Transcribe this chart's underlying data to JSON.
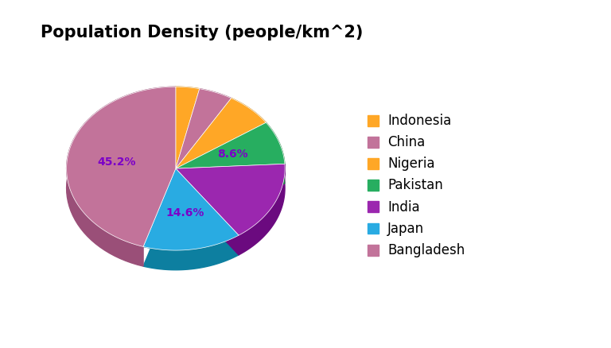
{
  "title": "Population Density (people/km^2)",
  "labels": [
    "Indonesia",
    "China",
    "Nigeria",
    "Pakistan",
    "India",
    "Japan",
    "Bangladesh"
  ],
  "values": [
    3.5,
    5.0,
    7.0,
    8.6,
    16.1,
    14.6,
    45.2
  ],
  "pie_colors": [
    "#FFA726",
    "#C2739A",
    "#FFA726",
    "#27AE60",
    "#9B27AF",
    "#29ABE2",
    "#C2739A"
  ],
  "pie_colors_dark": [
    "#CC8200",
    "#9A4F78",
    "#CC8200",
    "#1A8040",
    "#6B0A7F",
    "#0D7FA0",
    "#9A4F78"
  ],
  "title_fontsize": 15,
  "legend_fontsize": 12,
  "background_color": "#ffffff",
  "pct_color": "#7B00C8",
  "startangle": 90,
  "depth": 0.08
}
